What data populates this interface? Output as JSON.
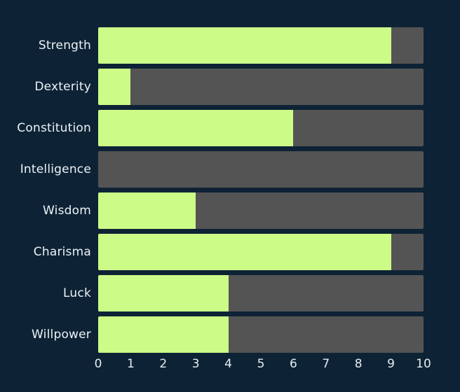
{
  "chart_data": {
    "type": "bar",
    "orientation": "horizontal",
    "title": "",
    "xlabel": "",
    "ylabel": "",
    "categories": [
      "Strength",
      "Dexterity",
      "Constitution",
      "Intelligence",
      "Wisdom",
      "Charisma",
      "Luck",
      "Willpower"
    ],
    "values": [
      9,
      1,
      6,
      0,
      3,
      9,
      4,
      4
    ],
    "xlim": [
      0,
      10
    ],
    "x_ticks": [
      0,
      1,
      2,
      3,
      4,
      5,
      6,
      7,
      8,
      9,
      10
    ],
    "grid": false,
    "legend": false,
    "colors": {
      "background": "#0d2335",
      "bar_fill": "#cdfb87",
      "bar_track": "#545454",
      "label_text": "#eef2f6",
      "tick_text": "#e6ebef"
    }
  }
}
